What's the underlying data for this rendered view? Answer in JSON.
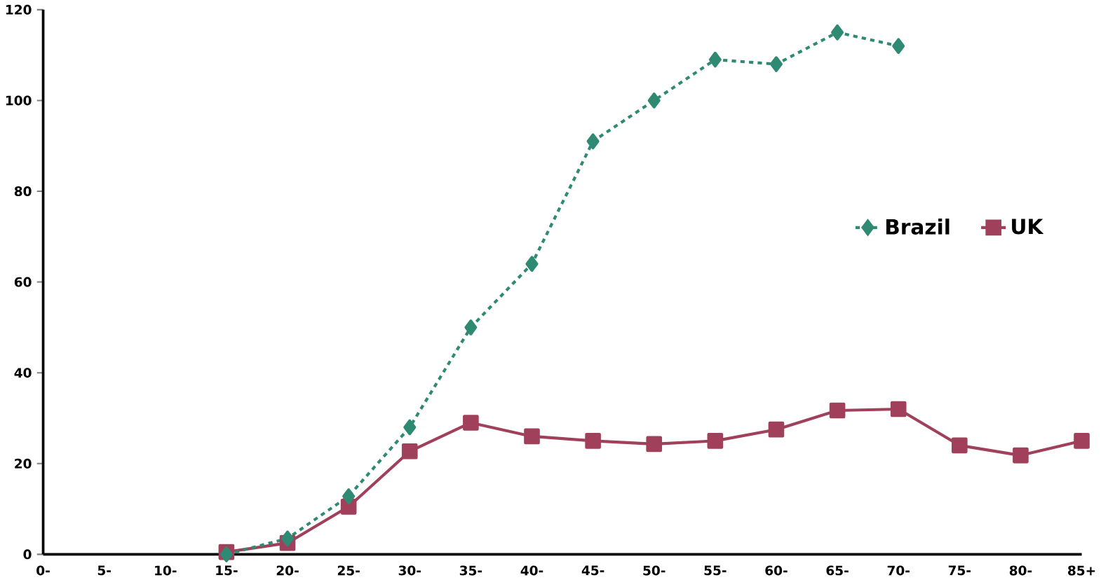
{
  "chart_data": {
    "type": "line",
    "categories": [
      "0-",
      "5-",
      "10-",
      "15-",
      "20-",
      "25-",
      "30-",
      "35-",
      "40-",
      "45-",
      "50-",
      "55-",
      "60-",
      "65-",
      "70-",
      "75-",
      "80-",
      "85+"
    ],
    "series": [
      {
        "name": "Brazil",
        "color": "#2f8a73",
        "line_style": "dotted",
        "marker": "diamond",
        "values": [
          null,
          null,
          null,
          0,
          3.5,
          12.8,
          28,
          50,
          64,
          91,
          100,
          109,
          108,
          115,
          112,
          null,
          null,
          null
        ]
      },
      {
        "name": "UK",
        "color": "#a0405a",
        "line_style": "solid",
        "marker": "square",
        "values": [
          null,
          null,
          null,
          0.5,
          2.5,
          10.5,
          22.7,
          29,
          26,
          25,
          24.3,
          25,
          27.5,
          31.7,
          32,
          24,
          21.8,
          25
        ]
      }
    ],
    "ylim": [
      0,
      120
    ],
    "yticks": [
      0,
      20,
      40,
      60,
      80,
      100,
      120
    ],
    "grid": false,
    "legend": "right"
  }
}
